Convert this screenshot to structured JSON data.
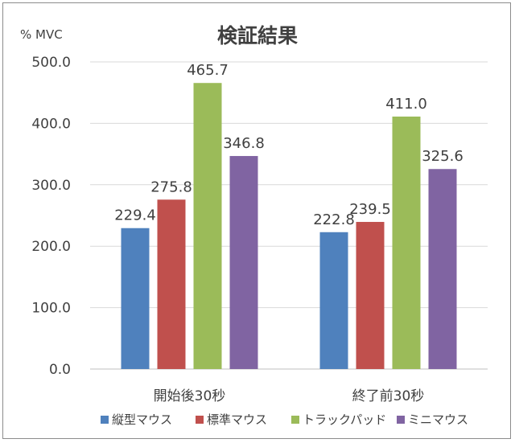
{
  "chart_data": {
    "type": "bar",
    "title": "検証結果",
    "ylabel": "% MVC",
    "xlabel": "",
    "ylim": [
      0,
      500
    ],
    "yticks": [
      "0.0",
      "100.0",
      "200.0",
      "300.0",
      "400.0",
      "500.0"
    ],
    "grid": true,
    "legend_position": "bottom",
    "categories": [
      "開始後30秒",
      "終了前30秒"
    ],
    "series": [
      {
        "name": "縦型マウス",
        "color": "#4f81bd",
        "values": [
          229.4,
          222.8
        ],
        "labels": [
          "229.4",
          "222.8"
        ]
      },
      {
        "name": "標準マウス",
        "color": "#c0504d",
        "values": [
          275.8,
          239.5
        ],
        "labels": [
          "275.8",
          "239.5"
        ]
      },
      {
        "name": "トラックパッド",
        "color": "#9bbb59",
        "values": [
          465.7,
          411.0
        ],
        "labels": [
          "465.7",
          "411.0"
        ]
      },
      {
        "name": "ミニマウス",
        "color": "#8064a2",
        "values": [
          346.8,
          325.6
        ],
        "labels": [
          "346.8",
          "325.6"
        ]
      }
    ]
  }
}
